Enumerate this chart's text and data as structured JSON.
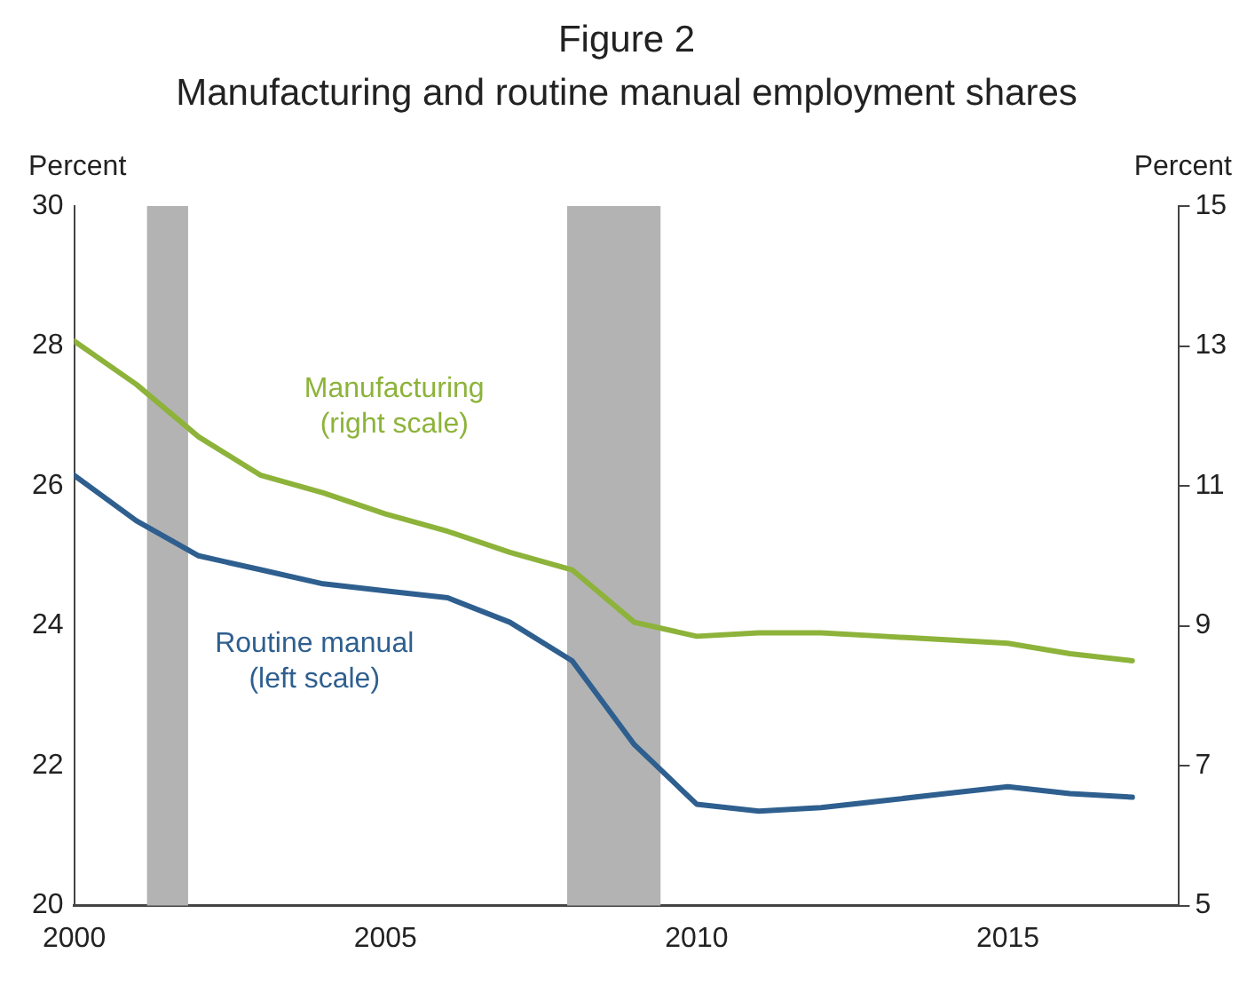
{
  "chart_data": {
    "type": "line",
    "title": "Figure 2",
    "subtitle": "Manufacturing and routine manual employment shares",
    "ylabel": "Percent",
    "y2label": "Percent",
    "x": [
      2000,
      2001,
      2002,
      2003,
      2004,
      2005,
      2006,
      2007,
      2008,
      2009,
      2010,
      2011,
      2012,
      2013,
      2014,
      2015,
      2016,
      2017
    ],
    "series": [
      {
        "name": "Manufacturing (right scale)",
        "color": "#8db33a",
        "axis": "y2",
        "values": [
          13.07,
          12.45,
          11.7,
          11.15,
          10.9,
          10.6,
          10.35,
          10.05,
          9.8,
          9.05,
          8.85,
          8.9,
          8.9,
          8.85,
          8.8,
          8.75,
          8.6,
          8.5
        ]
      },
      {
        "name": "Routine manual (left scale)",
        "color": "#2e5f8f",
        "values": [
          26.15,
          25.5,
          25.0,
          24.8,
          24.6,
          24.5,
          24.4,
          24.05,
          23.5,
          22.3,
          21.45,
          21.35,
          21.4,
          21.5,
          21.6,
          21.7,
          21.6,
          21.55
        ]
      }
    ],
    "xlim": [
      2000,
      2017.75
    ],
    "xticks": [
      2000,
      2005,
      2010,
      2015
    ],
    "ylim": [
      20,
      30
    ],
    "yticks": [
      20,
      22,
      24,
      26,
      28,
      30
    ],
    "y2lim": [
      5,
      15
    ],
    "y2ticks": [
      5,
      7,
      9,
      11,
      13,
      15
    ],
    "bands": [
      {
        "axis": "x",
        "from": 2001.17,
        "to": 2001.83,
        "color": "#b3b3b3"
      },
      {
        "axis": "x",
        "from": 2007.92,
        "to": 2009.42,
        "color": "#b3b3b3"
      }
    ],
    "grid": false,
    "legend": false,
    "marker": "none",
    "line_style": "solid"
  }
}
